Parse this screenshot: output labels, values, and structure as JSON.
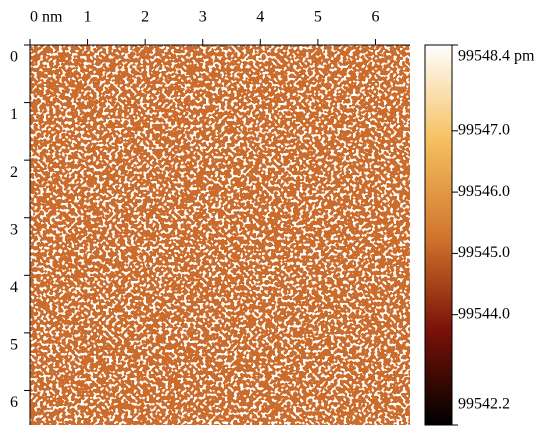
{
  "chart_data": {
    "type": "heatmap",
    "xlim": [
      0,
      6.6
    ],
    "xticks": [
      {
        "value": 0,
        "label": "0 nm"
      },
      1,
      2,
      3,
      4,
      5,
      6
    ],
    "ylim": [
      0,
      6.6
    ],
    "yticks": [
      0,
      1,
      2,
      3,
      4,
      5,
      6
    ],
    "colorbar": {
      "lim": [
        99542.2,
        99548.4
      ],
      "ticks": [
        {
          "value": 99548.4,
          "label": "99548.4 pm"
        },
        {
          "value": 99547,
          "label": "99547.0"
        },
        {
          "value": 99546,
          "label": "99546.0"
        },
        {
          "value": 99545,
          "label": "99545.0"
        },
        {
          "value": 99544,
          "label": "99544.0"
        },
        {
          "value": 99542.2,
          "label": "99542.2"
        }
      ],
      "colormap": [
        "#000000",
        "#7a1208",
        "#d2772e",
        "#f5c060",
        "#ffffff"
      ]
    }
  }
}
